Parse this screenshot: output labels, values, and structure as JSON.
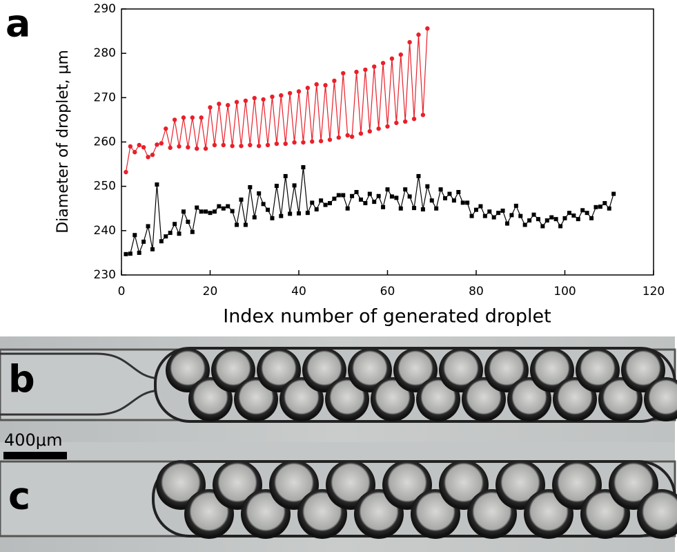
{
  "chart_data": {
    "type": "line",
    "panel_label": "a",
    "x_label": "Index number of generated droplet",
    "y_label": "Diameter of droplet, μm",
    "xlim": [
      0,
      120
    ],
    "xticks": [
      0,
      20,
      40,
      60,
      80,
      100,
      120
    ],
    "ylim": [
      230,
      290
    ],
    "yticks": [
      230,
      240,
      250,
      260,
      270,
      280,
      290
    ],
    "series": [
      {
        "color": "#e8202a",
        "marker": "circle",
        "x": [
          1,
          2,
          3,
          4,
          5,
          6,
          7,
          8,
          9,
          10,
          11,
          12,
          13,
          14,
          15,
          16,
          17,
          18,
          19,
          20,
          21,
          22,
          23,
          24,
          25,
          26,
          27,
          28,
          29,
          30,
          31,
          32,
          33,
          34,
          35,
          36,
          37,
          38,
          39,
          40,
          41,
          42,
          43,
          44,
          45,
          46,
          47,
          48,
          49,
          50,
          51,
          52,
          53,
          54,
          55,
          56,
          57,
          58,
          59,
          60,
          61,
          62,
          63,
          64,
          65,
          66,
          67,
          68,
          69
        ],
        "values": [
          253.2,
          259,
          257.7,
          259.3,
          258.8,
          256.6,
          257.1,
          259.4,
          259.7,
          263,
          258.7,
          265,
          259,
          265.5,
          258.8,
          265.5,
          258.5,
          265.5,
          258.5,
          267.8,
          259.3,
          268.6,
          259.3,
          268.3,
          259.1,
          269,
          259.1,
          269.3,
          259.3,
          269.9,
          259.1,
          269.6,
          259.3,
          270.2,
          259.6,
          270.5,
          259.6,
          271,
          259.9,
          271.4,
          259.9,
          272.2,
          260.1,
          273,
          260.2,
          272.8,
          260.5,
          273.8,
          261,
          275.5,
          261.5,
          261.2,
          275.8,
          261.9,
          276.3,
          262.4,
          277,
          263,
          277.8,
          263.5,
          278.8,
          264.3,
          279.7,
          264.6,
          282.5,
          265.2,
          284.2,
          266.1,
          285.6
        ]
      },
      {
        "color": "#000000",
        "marker": "square",
        "x": [
          1,
          2,
          3,
          4,
          5,
          6,
          7,
          8,
          9,
          10,
          11,
          12,
          13,
          14,
          15,
          16,
          17,
          18,
          19,
          20,
          21,
          22,
          23,
          24,
          25,
          26,
          27,
          28,
          29,
          30,
          31,
          32,
          33,
          34,
          35,
          36,
          37,
          38,
          39,
          40,
          41,
          42,
          43,
          44,
          45,
          46,
          47,
          48,
          49,
          50,
          51,
          52,
          53,
          54,
          55,
          56,
          57,
          58,
          59,
          60,
          61,
          62,
          63,
          64,
          65,
          66,
          67,
          68,
          69,
          70,
          71,
          72,
          73,
          74,
          75,
          76,
          77,
          78,
          79,
          80,
          81,
          82,
          83,
          84,
          85,
          86,
          87,
          88,
          89,
          90,
          91,
          92,
          93,
          94,
          95,
          96,
          97,
          98,
          99,
          100,
          101,
          102,
          103,
          104,
          105,
          106,
          107,
          108,
          109,
          110,
          111
        ],
        "values": [
          234.7,
          234.8,
          239,
          235,
          237.5,
          241,
          235.8,
          250.4,
          237.6,
          238.7,
          239.5,
          241.5,
          239.3,
          244.3,
          242,
          239.7,
          245.2,
          244.3,
          244.3,
          244,
          244.3,
          245.5,
          245,
          245.5,
          244.4,
          241.3,
          247,
          241.3,
          249.8,
          243,
          248.4,
          246,
          244.7,
          242.8,
          250.1,
          243.3,
          252.3,
          243.8,
          250.2,
          243.9,
          254.3,
          244,
          246.3,
          244.8,
          246.8,
          245.8,
          246.2,
          247.2,
          248,
          248,
          245,
          247.8,
          248.7,
          247,
          246.2,
          248.3,
          246.5,
          247.8,
          245.3,
          249.3,
          247.7,
          247.4,
          245,
          249.3,
          247.7,
          245.1,
          252.3,
          244.8,
          250,
          246.8,
          245,
          249.3,
          247.3,
          248.3,
          246.8,
          248.7,
          246.3,
          246.3,
          243.3,
          244.7,
          245.5,
          243.3,
          244.3,
          243,
          244,
          244.5,
          241.6,
          243.5,
          245.6,
          243.3,
          241.3,
          242.3,
          243.6,
          242.6,
          241,
          242.3,
          243,
          242.6,
          241,
          242.8,
          244,
          243.4,
          242.6,
          244.6,
          244,
          242.8,
          245.3,
          245.4,
          246.2,
          245,
          248.3
        ]
      }
    ]
  },
  "images": {
    "panel_b": "b",
    "panel_c": "c",
    "scale_bar": "400μm"
  }
}
